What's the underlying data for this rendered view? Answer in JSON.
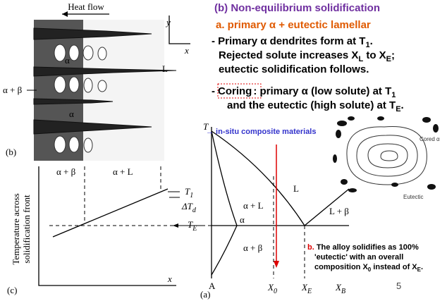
{
  "slide": {
    "heading": "(b) Non-equilibrium solidification",
    "subheading": "a. primary α + eutectic lamellar",
    "lines": [
      [
        "- Primary α dendrites form at T",
        "1",
        "."
      ],
      [
        "Rejected solute increases X",
        "L",
        " to X",
        "E",
        ";"
      ],
      [
        "eutectic solidification follows."
      ],
      [
        "-",
        "Coring",
        ": primary α (low solute) at T",
        "1"
      ],
      [
        "and the eutectic (high solute) at T",
        "E",
        "."
      ]
    ],
    "link": "→ in-situ composite materials",
    "note": [
      [
        "b.",
        " The alloy solidifies as 100%"
      ],
      [
        "'eutectic' with an overall"
      ],
      [
        "composition X",
        "0",
        " instead of X",
        "E",
        "."
      ]
    ],
    "page_number": "5"
  },
  "micrograph": {
    "heat_flow": "Heat flow",
    "y_axis": "y",
    "x_axis": "x",
    "alpha_top": "α",
    "alpha_bottom": "α",
    "liquid": "L",
    "alpha_beta": "α + β",
    "panel": "(b)"
  },
  "profile": {
    "alpha_beta": "α + β",
    "alpha_l": "α + L",
    "t1": [
      "T",
      "1"
    ],
    "delta_t": [
      "ΔT",
      "d"
    ],
    "te": [
      "T",
      "E"
    ],
    "y_label": [
      "Temperature across",
      "solidification front"
    ],
    "x_axis": "x",
    "panel": "(c)"
  },
  "phase_diagram": {
    "t_axis": "T",
    "liquid": "L",
    "alpha_l": "α + L",
    "alpha": "α",
    "alpha_beta": "α + β",
    "l_beta": "L + β",
    "a": "A",
    "x0": [
      "X",
      "0"
    ],
    "xe": [
      "X",
      "E"
    ],
    "xb": [
      "X",
      "B"
    ],
    "panel": "(a)"
  },
  "cored_sketch": {
    "cored": "Cored α",
    "eutectic": "Eutectic"
  }
}
